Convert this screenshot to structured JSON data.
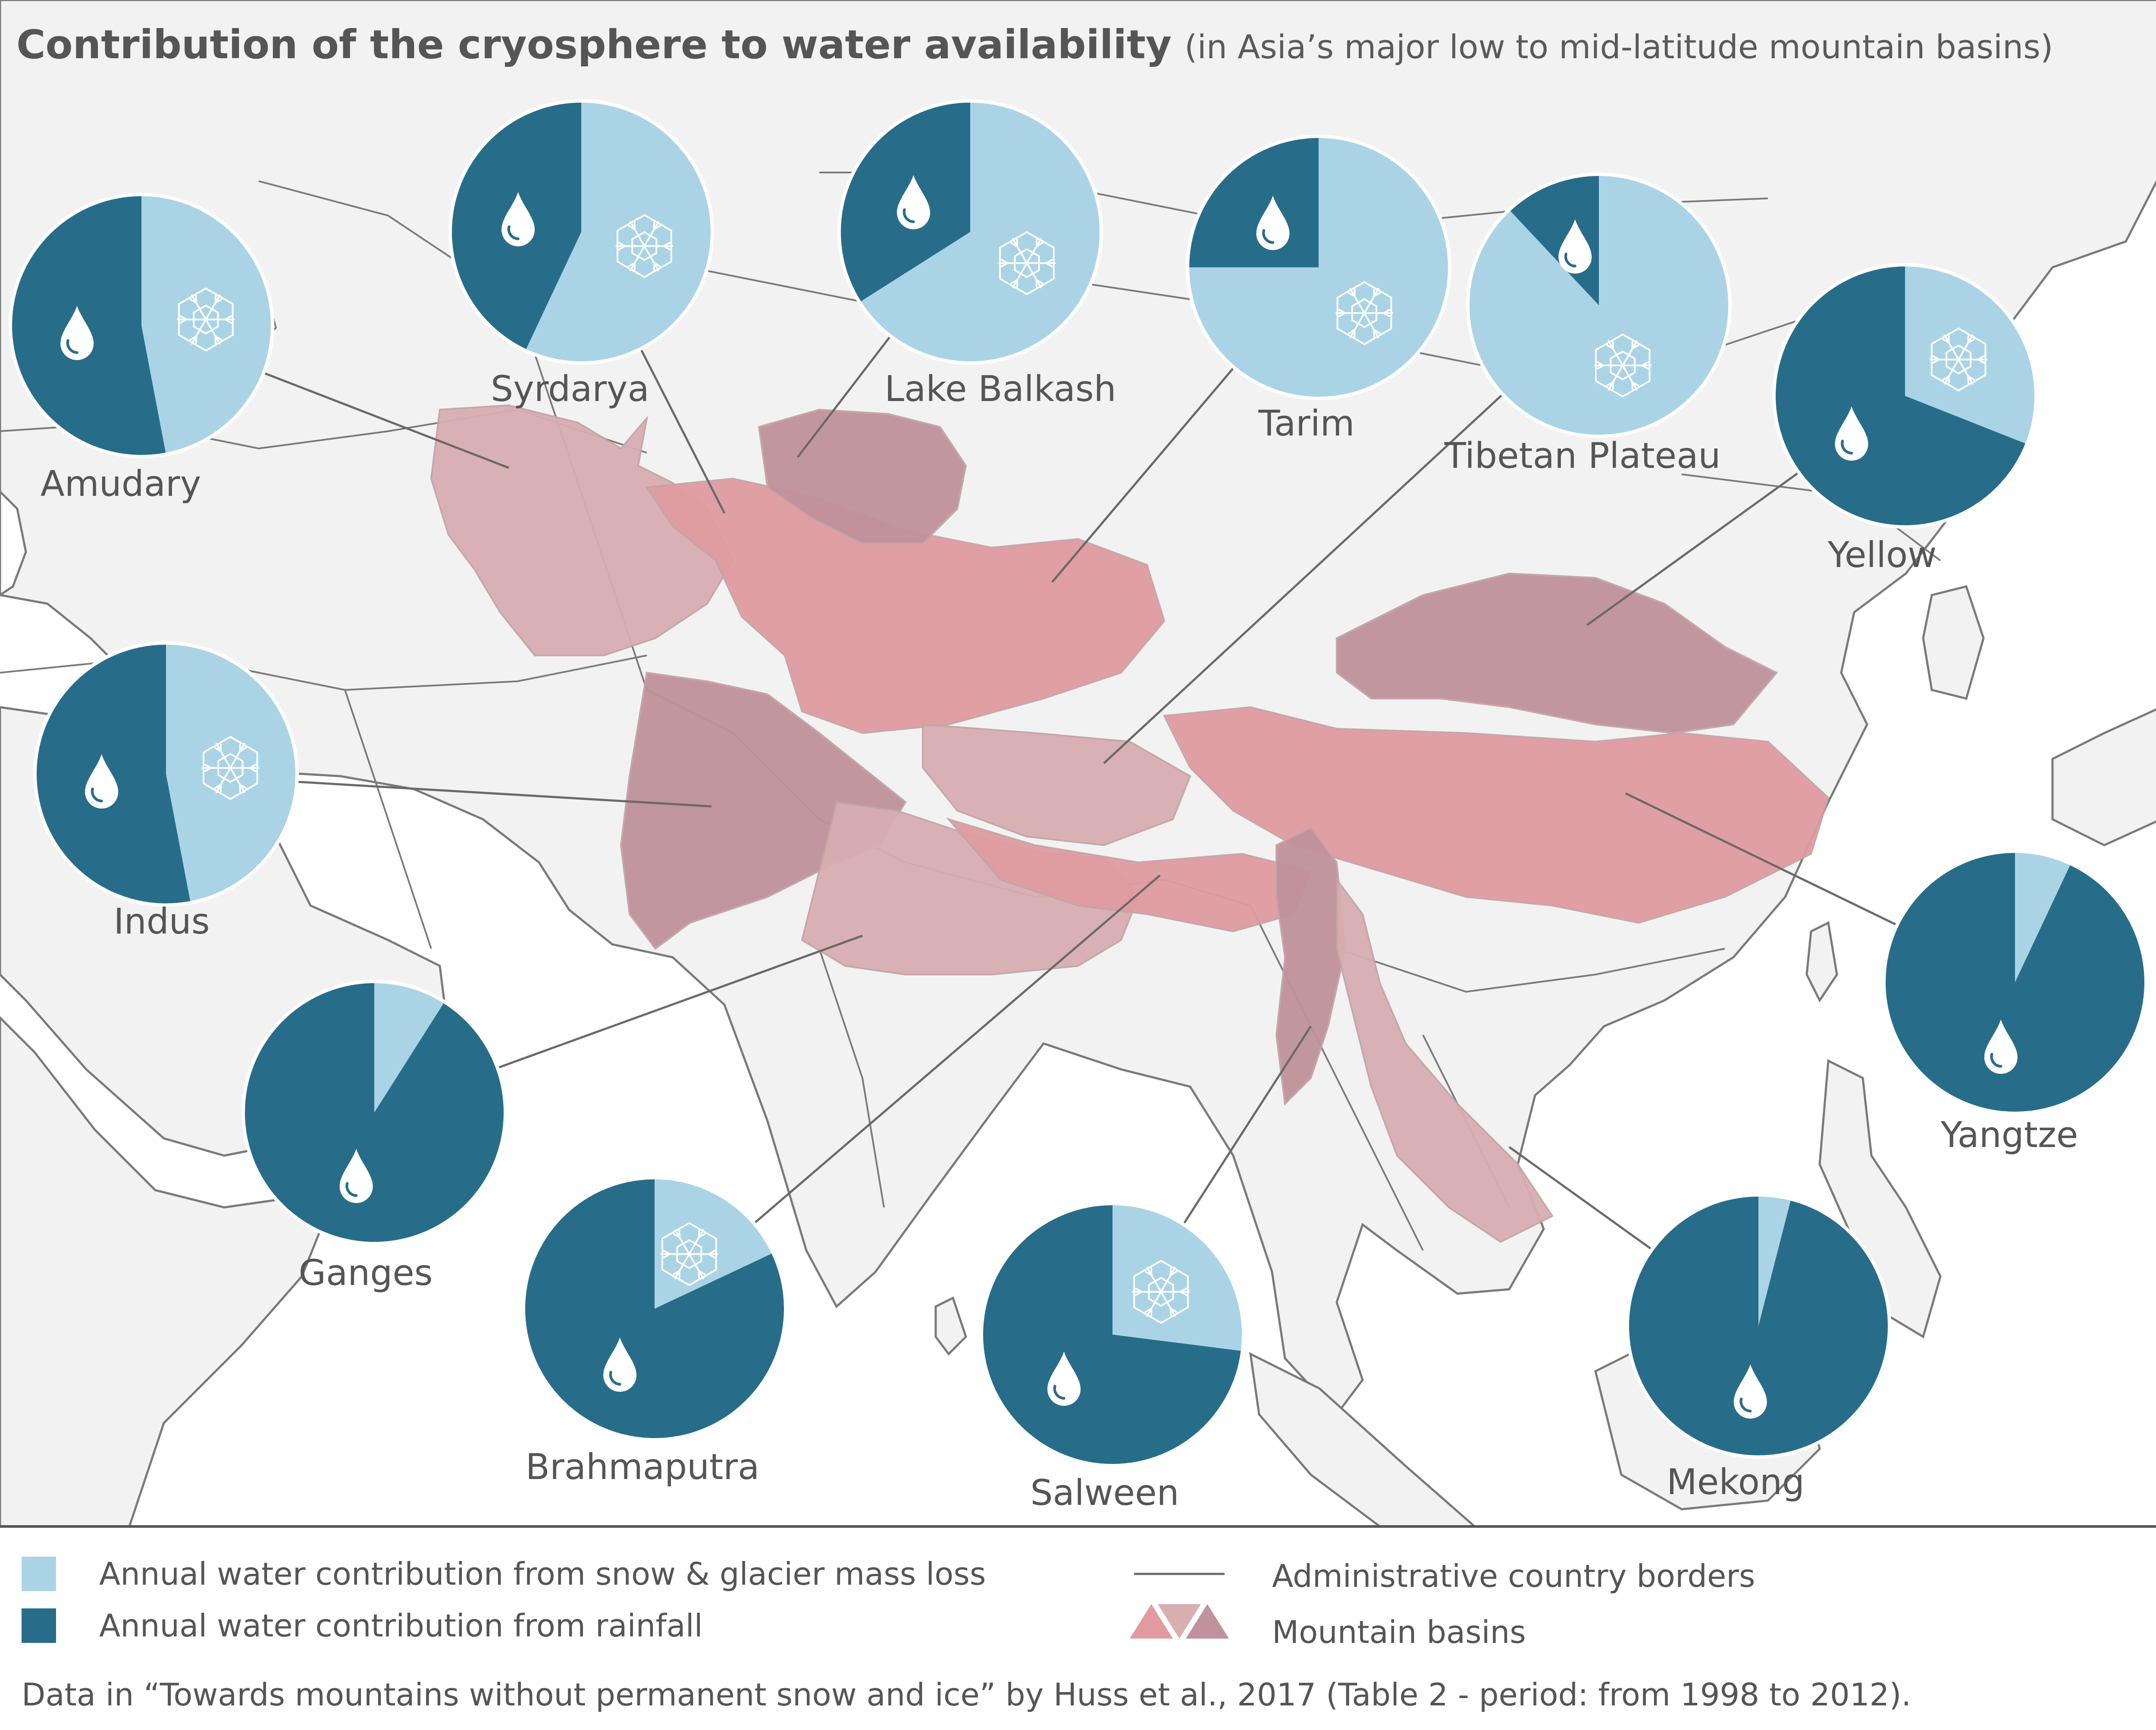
{
  "title": {
    "main": "Contribution of the cryosphere to water availability",
    "sub": "(in Asia’s major low to mid-latitude mountain basins)"
  },
  "colors": {
    "snow": "#aad4e6",
    "rain": "#276d8a",
    "land": "#f2f2f2",
    "sea": "#ffffff",
    "border": "#7a7a7a",
    "basin_light": "#d8aeb1",
    "basin_pink": "#e09ba0",
    "basin_dark": "#c0929b",
    "text": "#555555"
  },
  "icons": {
    "snow": "snowflake-icon",
    "rain": "water-drop-icon"
  },
  "basins": [
    {
      "id": "amudary",
      "name": "Amudary",
      "snow_share": 0.47
    },
    {
      "id": "syrdarya",
      "name": "Syrdarya",
      "snow_share": 0.57
    },
    {
      "id": "lake-balkash",
      "name": "Lake Balkash",
      "snow_share": 0.66
    },
    {
      "id": "tarim",
      "name": "Tarim",
      "snow_share": 0.75
    },
    {
      "id": "tibetan-plateau",
      "name": "Tibetan Plateau",
      "snow_share": 0.88
    },
    {
      "id": "yellow",
      "name": "Yellow",
      "snow_share": 0.31
    },
    {
      "id": "indus",
      "name": "Indus",
      "snow_share": 0.47
    },
    {
      "id": "ganges",
      "name": "Ganges",
      "snow_share": 0.09
    },
    {
      "id": "brahmaputra",
      "name": "Brahmaputra",
      "snow_share": 0.18
    },
    {
      "id": "salween",
      "name": "Salween",
      "snow_share": 0.27
    },
    {
      "id": "mekong",
      "name": "Mekong",
      "snow_share": 0.04
    },
    {
      "id": "yangtze",
      "name": "Yangtze",
      "snow_share": 0.07
    }
  ],
  "legend": {
    "snow": "Annual water contribution from snow & glacier mass loss",
    "rain": "Annual water contribution from rainfall",
    "borders": "Administrative country borders",
    "basins": "Mountain basins"
  },
  "source": "Data in “Towards mountains without permanent snow and ice” by Huss et al., 2017 (Table 2 - period: from 1998 to 2012)."
}
